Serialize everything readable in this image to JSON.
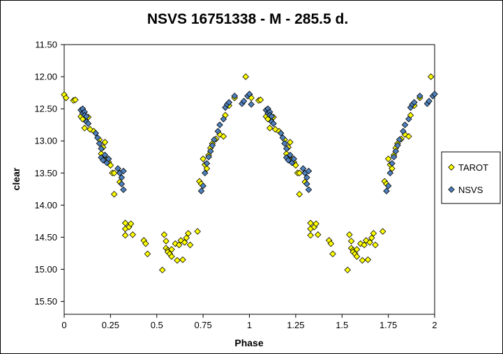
{
  "chart_data": {
    "type": "scatter",
    "title": "NSVS 16751338 - M - 285.5 d.",
    "xlabel": "Phase",
    "ylabel": "clear",
    "xlim": [
      0,
      2
    ],
    "ylim": [
      11.5,
      15.7
    ],
    "y_reversed": true,
    "x_ticks": [
      0,
      0.25,
      0.5,
      0.75,
      1,
      1.25,
      1.5,
      1.75,
      2
    ],
    "x_tick_labels": [
      "0",
      "0.25",
      "0.5",
      "0.75",
      "1",
      "1.25",
      "1.5",
      "1.75",
      "2"
    ],
    "y_ticks": [
      11.5,
      12.0,
      12.5,
      13.0,
      13.5,
      14.0,
      14.5,
      15.0,
      15.5
    ],
    "y_tick_labels": [
      "11.50",
      "12.00",
      "12.50",
      "13.00",
      "13.50",
      "14.00",
      "14.50",
      "15.00",
      "15.50"
    ],
    "grid": false,
    "legend_position": "right",
    "series": [
      {
        "name": "TAROT",
        "color": "#ffff00",
        "marker": "diamond",
        "points": [
          [
            0.0,
            12.28
          ],
          [
            0.01,
            12.33
          ],
          [
            0.05,
            12.37
          ],
          [
            0.06,
            12.36
          ],
          [
            0.09,
            12.62
          ],
          [
            0.1,
            12.66
          ],
          [
            0.11,
            12.8
          ],
          [
            0.13,
            12.63
          ],
          [
            0.14,
            12.82
          ],
          [
            0.16,
            12.85
          ],
          [
            0.19,
            12.98
          ],
          [
            0.2,
            13.2
          ],
          [
            0.21,
            13.1
          ],
          [
            0.22,
            13.02
          ],
          [
            0.23,
            13.29
          ],
          [
            0.24,
            13.33
          ],
          [
            0.25,
            13.38
          ],
          [
            0.26,
            13.5
          ],
          [
            0.27,
            13.5
          ],
          [
            0.27,
            13.83
          ],
          [
            0.3,
            13.64
          ],
          [
            0.33,
            14.28
          ],
          [
            0.33,
            14.37
          ],
          [
            0.33,
            14.47
          ],
          [
            0.35,
            14.34
          ],
          [
            0.36,
            14.29
          ],
          [
            0.37,
            14.46
          ],
          [
            0.43,
            14.55
          ],
          [
            0.44,
            14.6
          ],
          [
            0.45,
            14.76
          ],
          [
            0.53,
            15.01
          ],
          [
            0.54,
            14.46
          ],
          [
            0.55,
            14.56
          ],
          [
            0.55,
            14.67
          ],
          [
            0.56,
            14.7
          ],
          [
            0.56,
            14.73
          ],
          [
            0.57,
            14.76
          ],
          [
            0.58,
            14.69
          ],
          [
            0.58,
            14.8
          ],
          [
            0.6,
            14.6
          ],
          [
            0.61,
            14.86
          ],
          [
            0.62,
            14.62
          ],
          [
            0.63,
            14.55
          ],
          [
            0.64,
            14.85
          ],
          [
            0.65,
            14.58
          ],
          [
            0.66,
            14.51
          ],
          [
            0.67,
            14.44
          ],
          [
            0.68,
            14.62
          ],
          [
            0.72,
            14.41
          ],
          [
            0.73,
            13.63
          ],
          [
            0.74,
            13.67
          ],
          [
            0.75,
            13.28
          ],
          [
            0.76,
            13.37
          ],
          [
            0.77,
            13.43
          ],
          [
            0.78,
            13.22
          ],
          [
            0.79,
            13.11
          ],
          [
            0.8,
            13.04
          ],
          [
            0.82,
            12.97
          ],
          [
            0.84,
            12.9
          ],
          [
            0.86,
            12.93
          ],
          [
            0.87,
            12.6
          ],
          [
            0.89,
            12.45
          ],
          [
            0.92,
            12.33
          ],
          [
            0.98,
            12.0
          ]
        ]
      },
      {
        "name": "NSVS",
        "color": "#4f81bd",
        "marker": "diamond",
        "points": [
          [
            0.09,
            12.52
          ],
          [
            0.1,
            12.5
          ],
          [
            0.1,
            12.57
          ],
          [
            0.11,
            12.55
          ],
          [
            0.11,
            12.6
          ],
          [
            0.12,
            12.62
          ],
          [
            0.12,
            12.7
          ],
          [
            0.13,
            12.73
          ],
          [
            0.17,
            12.88
          ],
          [
            0.18,
            12.95
          ],
          [
            0.19,
            13.04
          ],
          [
            0.2,
            13.12
          ],
          [
            0.2,
            13.26
          ],
          [
            0.21,
            13.3
          ],
          [
            0.22,
            13.22
          ],
          [
            0.23,
            13.34
          ],
          [
            0.24,
            13.28
          ],
          [
            0.29,
            13.43
          ],
          [
            0.3,
            13.5
          ],
          [
            0.31,
            13.57
          ],
          [
            0.31,
            13.67
          ],
          [
            0.32,
            13.76
          ],
          [
            0.32,
            13.47
          ],
          [
            0.74,
            13.78
          ],
          [
            0.75,
            13.7
          ],
          [
            0.76,
            13.5
          ],
          [
            0.77,
            13.35
          ],
          [
            0.78,
            13.25
          ],
          [
            0.79,
            13.16
          ],
          [
            0.8,
            13.07
          ],
          [
            0.81,
            12.98
          ],
          [
            0.83,
            12.85
          ],
          [
            0.84,
            12.75
          ],
          [
            0.86,
            12.66
          ],
          [
            0.87,
            12.48
          ],
          [
            0.88,
            12.43
          ],
          [
            0.89,
            12.4
          ],
          [
            0.92,
            12.3
          ],
          [
            0.96,
            12.42
          ],
          [
            0.97,
            12.38
          ],
          [
            0.99,
            12.3
          ],
          [
            1.0,
            12.27
          ],
          [
            1.01,
            12.43
          ]
        ]
      }
    ]
  }
}
